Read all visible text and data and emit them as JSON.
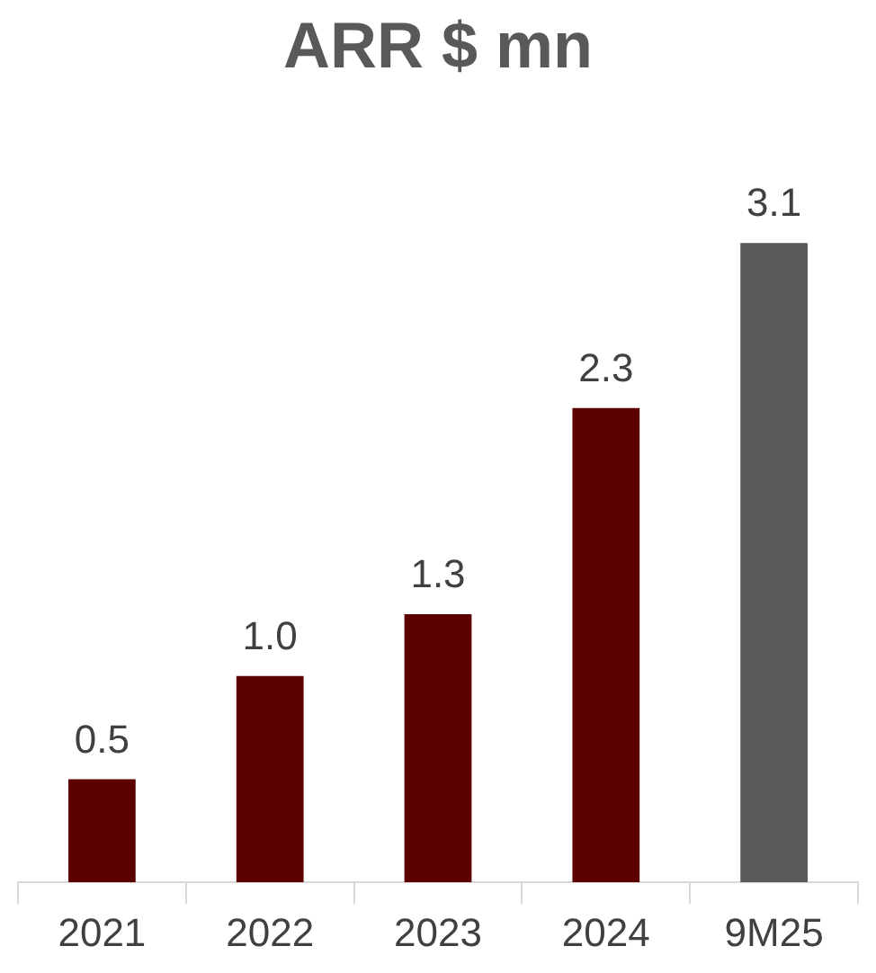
{
  "chart_data": {
    "type": "bar",
    "title": "ARR $ mn",
    "categories": [
      "2021",
      "2022",
      "2023",
      "2024",
      "9M25"
    ],
    "values": [
      0.5,
      1.0,
      1.3,
      2.3,
      3.1
    ],
    "colors": [
      "#5c0000",
      "#5c0000",
      "#5c0000",
      "#5c0000",
      "#595959"
    ],
    "value_labels": [
      "0.5",
      "1.0",
      "1.3",
      "2.3",
      "3.1"
    ],
    "tick_labels": "x",
    "grid": false,
    "legend": false
  }
}
